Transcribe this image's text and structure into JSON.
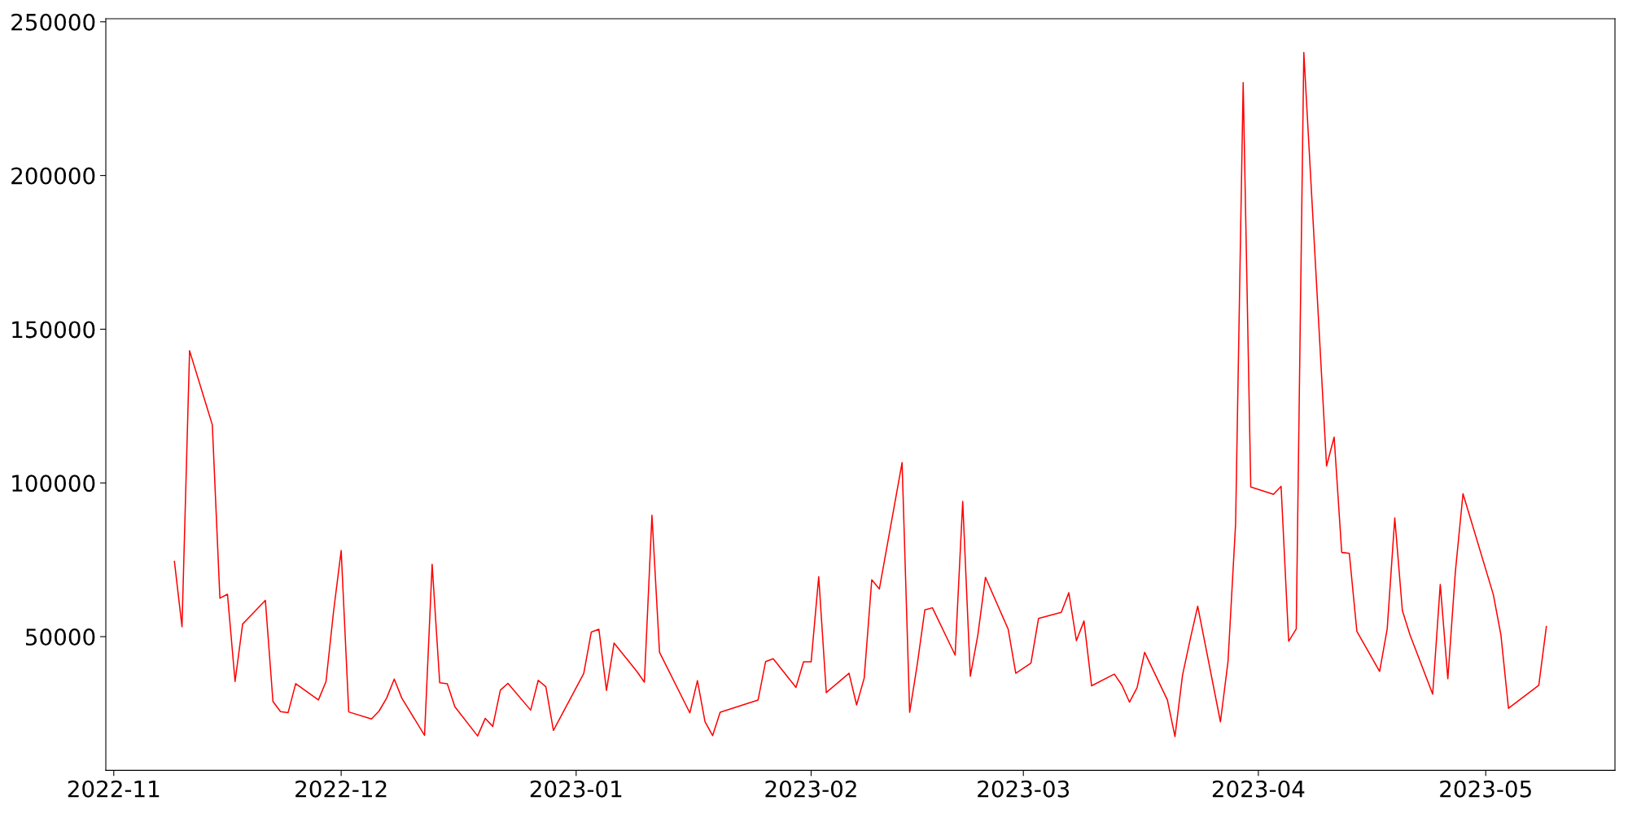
{
  "chart_data": {
    "type": "line",
    "x": [
      "2022-11-09",
      "2022-11-10",
      "2022-11-11",
      "2022-11-14",
      "2022-11-15",
      "2022-11-16",
      "2022-11-17",
      "2022-11-18",
      "2022-11-21",
      "2022-11-22",
      "2022-11-23",
      "2022-11-24",
      "2022-11-25",
      "2022-11-28",
      "2022-11-29",
      "2022-11-30",
      "2022-12-01",
      "2022-12-02",
      "2022-12-05",
      "2022-12-06",
      "2022-12-07",
      "2022-12-08",
      "2022-12-09",
      "2022-12-12",
      "2022-12-13",
      "2022-12-14",
      "2022-12-15",
      "2022-12-16",
      "2022-12-19",
      "2022-12-20",
      "2022-12-21",
      "2022-12-22",
      "2022-12-23",
      "2022-12-26",
      "2022-12-27",
      "2022-12-28",
      "2022-12-29",
      "2023-01-02",
      "2023-01-03",
      "2023-01-04",
      "2023-01-05",
      "2023-01-06",
      "2023-01-09",
      "2023-01-10",
      "2023-01-11",
      "2023-01-12",
      "2023-01-16",
      "2023-01-17",
      "2023-01-18",
      "2023-01-19",
      "2023-01-20",
      "2023-01-25",
      "2023-01-26",
      "2023-01-27",
      "2023-01-30",
      "2023-01-31",
      "2023-02-01",
      "2023-02-02",
      "2023-02-03",
      "2023-02-06",
      "2023-02-07",
      "2023-02-08",
      "2023-02-09",
      "2023-02-10",
      "2023-02-13",
      "2023-02-14",
      "2023-02-15",
      "2023-02-16",
      "2023-02-17",
      "2023-02-20",
      "2023-02-21",
      "2023-02-22",
      "2023-02-23",
      "2023-02-24",
      "2023-02-27",
      "2023-02-28",
      "2023-03-02",
      "2023-03-03",
      "2023-03-06",
      "2023-03-07",
      "2023-03-08",
      "2023-03-09",
      "2023-03-10",
      "2023-03-13",
      "2023-03-14",
      "2023-03-15",
      "2023-03-16",
      "2023-03-17",
      "2023-03-20",
      "2023-03-21",
      "2023-03-22",
      "2023-03-23",
      "2023-03-24",
      "2023-03-27",
      "2023-03-28",
      "2023-03-29",
      "2023-03-30",
      "2023-03-31",
      "2023-04-03",
      "2023-04-04",
      "2023-04-05",
      "2023-04-06",
      "2023-04-07",
      "2023-04-10",
      "2023-04-11",
      "2023-04-12",
      "2023-04-13",
      "2023-04-14",
      "2023-04-17",
      "2023-04-18",
      "2023-04-19",
      "2023-04-20",
      "2023-04-21",
      "2023-04-24",
      "2023-04-25",
      "2023-04-26",
      "2023-04-27",
      "2023-04-28",
      "2023-05-02",
      "2023-05-03",
      "2023-05-04",
      "2023-05-08",
      "2023-05-09"
    ],
    "series": [
      {
        "color": "#ff0000",
        "values": [
          74500,
          53200,
          143000,
          118900,
          62500,
          63800,
          35400,
          54100,
          61800,
          28900,
          25600,
          25300,
          34700,
          29400,
          35400,
          58300,
          78000,
          25500,
          23200,
          25800,
          30000,
          36200,
          30000,
          17900,
          73500,
          35000,
          34700,
          27200,
          17700,
          23400,
          20800,
          32600,
          34800,
          26100,
          35800,
          33700,
          19500,
          38000,
          51500,
          52400,
          32500,
          47900,
          38700,
          35200,
          89500,
          44900,
          25200,
          35700,
          22300,
          17800,
          25400,
          29400,
          41900,
          42800,
          33500,
          41800,
          41800,
          69500,
          31800,
          38100,
          27800,
          36500,
          68500,
          65500,
          106600,
          25400,
          40900,
          58700,
          59400,
          44000,
          94000,
          37100,
          50600,
          69300,
          52400,
          38100,
          41400,
          55900,
          57900,
          64300,
          48700,
          55100,
          34000,
          37800,
          34200,
          28700,
          33400,
          44900,
          29400,
          17500,
          37500,
          49000,
          59900,
          22300,
          41900,
          86700,
          230200,
          98700,
          96300,
          98900,
          48500,
          52500,
          240000,
          105500,
          114900,
          77400,
          77100,
          51700,
          38700,
          52500,
          88600,
          58500,
          50600,
          31300,
          67000,
          36300,
          71300,
          96500,
          63700,
          50600,
          26700,
          34200,
          53300
        ]
      }
    ],
    "xlim": [
      "2022-10-30T22:48",
      "2023-05-18T01:12"
    ],
    "xticks": [
      "2022-11",
      "2022-12",
      "2023-01",
      "2023-02",
      "2023-03",
      "2023-04",
      "2023-05"
    ],
    "ylim": [
      6500,
      251000
    ],
    "yticks": [
      50000,
      100000,
      150000,
      200000,
      250000
    ],
    "grid": false,
    "marker": "none",
    "line_style": "solid"
  }
}
